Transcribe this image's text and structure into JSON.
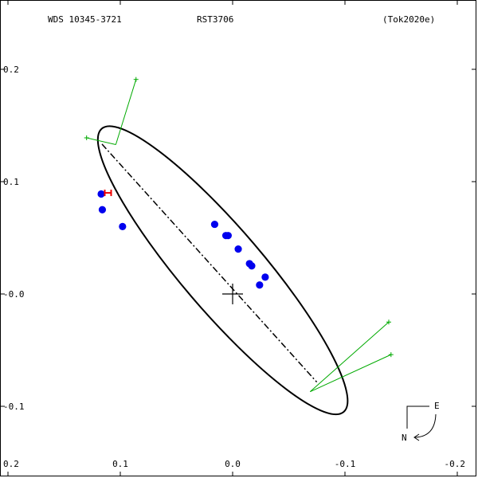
{
  "header": {
    "wds_id": "WDS 10345-3721",
    "discoverer": "RST3706",
    "reference": "(Tok2020e)"
  },
  "chart_data": {
    "type": "scatter",
    "title": "",
    "xlabel": "",
    "ylabel": "",
    "xlim": [
      0.2,
      -0.2
    ],
    "ylim": [
      -0.2,
      0.2
    ],
    "x_ticks": [
      {
        "value": 0.2,
        "label": "0.2"
      },
      {
        "value": 0.1,
        "label": "0.1"
      },
      {
        "value": 0.0,
        "label": "0.0"
      },
      {
        "value": -0.1,
        "label": "-0.1"
      },
      {
        "value": -0.2,
        "label": "-0.2"
      }
    ],
    "y_ticks": [
      {
        "value": 0.2,
        "label": "0.2"
      },
      {
        "value": 0.1,
        "label": "0.1"
      },
      {
        "value": 0.0,
        "label": "-0.0"
      },
      {
        "value": -0.1,
        "label": "-0.1"
      }
    ],
    "orbit": {
      "center": [
        0.0088,
        0.0211
      ],
      "semi_major": 0.1658,
      "semi_minor": 0.0364,
      "major_axis_angle_deg": -49.5,
      "color": "#000000"
    },
    "line_of_nodes": {
      "from": [
        0.1163,
        0.1334
      ],
      "to": [
        -0.0749,
        -0.0784
      ]
    },
    "primary_star": [
      0.0,
      0.0
    ],
    "observations": [
      {
        "x": 0.117,
        "y": 0.089
      },
      {
        "x": 0.116,
        "y": 0.075
      },
      {
        "x": 0.098,
        "y": 0.06
      },
      {
        "x": 0.016,
        "y": 0.062
      },
      {
        "x": 0.006,
        "y": 0.052
      },
      {
        "x": 0.004,
        "y": 0.052
      },
      {
        "x": -0.005,
        "y": 0.04
      },
      {
        "x": -0.015,
        "y": 0.027
      },
      {
        "x": -0.017,
        "y": 0.025
      },
      {
        "x": -0.029,
        "y": 0.015
      },
      {
        "x": -0.024,
        "y": 0.008
      }
    ],
    "observation_color": "#0000ee",
    "measurement_marker": {
      "x": 0.111,
      "y": 0.09,
      "label": "H",
      "color": "#ee0000"
    },
    "residual_lines": [
      {
        "from": [
          0.104,
          0.133
        ],
        "to": [
          0.13,
          0.139
        ]
      },
      {
        "from": [
          0.104,
          0.133
        ],
        "to": [
          0.086,
          0.191
        ]
      },
      {
        "from": [
          -0.069,
          -0.087
        ],
        "to": [
          -0.139,
          -0.025
        ]
      },
      {
        "from": [
          -0.069,
          -0.087
        ],
        "to": [
          -0.141,
          -0.054
        ]
      }
    ],
    "residual_color": "#00aa00",
    "compass": {
      "east_label": "E",
      "north_label": "N"
    },
    "grid": false
  }
}
